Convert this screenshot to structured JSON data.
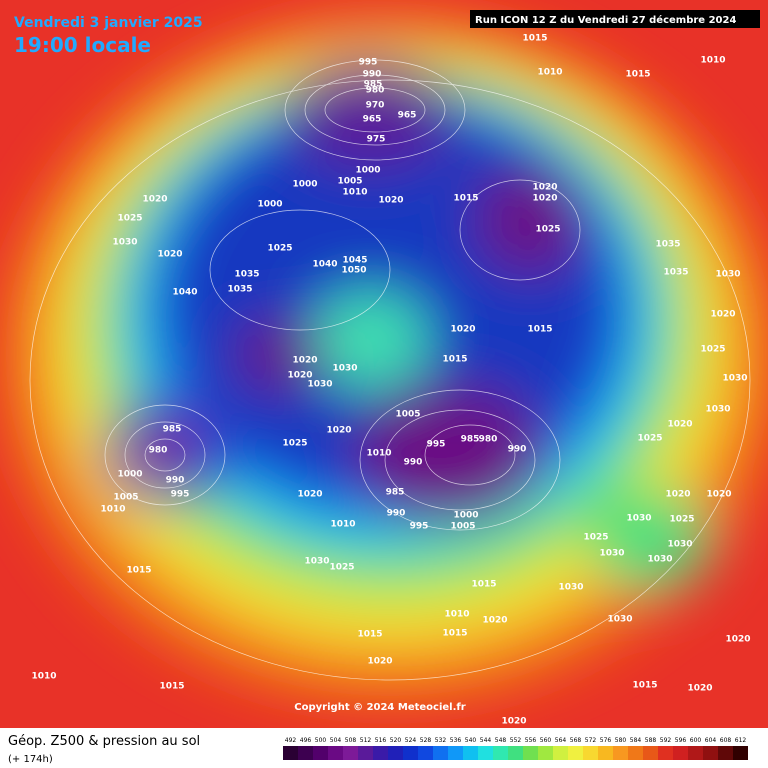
{
  "header": {
    "date": "Vendredi 3 janvier 2025",
    "time": "19:00 locale",
    "run": "Run ICON 12 Z du Vendredi 27 décembre 2024"
  },
  "copyright": "Copyright © 2024 Meteociel.fr",
  "footer": {
    "title": "Géop. Z500 & pression au sol",
    "lead": "(+ 174h)"
  },
  "legend": {
    "values": [
      "492",
      "496",
      "500",
      "504",
      "508",
      "512",
      "516",
      "520",
      "524",
      "528",
      "532",
      "536",
      "540",
      "544",
      "548",
      "552",
      "556",
      "560",
      "564",
      "568",
      "572",
      "576",
      "580",
      "584",
      "588",
      "592",
      "596",
      "600",
      "604",
      "608",
      "612"
    ],
    "colors": [
      "#2a0033",
      "#3d0050",
      "#52006b",
      "#6a0a84",
      "#7d1a98",
      "#5a1a9a",
      "#3a1aa8",
      "#2020b8",
      "#1030cc",
      "#1048e0",
      "#1070f0",
      "#1098f8",
      "#10c0f0",
      "#20e0e0",
      "#30e8b0",
      "#40e080",
      "#70e050",
      "#a0e840",
      "#d0f040",
      "#f0f040",
      "#f8d830",
      "#f8b820",
      "#f89820",
      "#f07818",
      "#e85818",
      "#e03020",
      "#d02020",
      "#b01818",
      "#901010",
      "#600808",
      "#300000"
    ]
  },
  "pressure_labels": [
    "1015",
    "1010",
    "1015",
    "1010",
    "995",
    "990",
    "985",
    "980",
    "970",
    "965",
    "965",
    "975",
    "1000",
    "1005",
    "1010",
    "1000",
    "1000",
    "1020",
    "1015",
    "1020",
    "1020",
    "1025",
    "1020",
    "1025",
    "1030",
    "1020",
    "1040",
    "1035",
    "1035",
    "1025",
    "1040",
    "1045",
    "1050",
    "1020",
    "1015",
    "1015",
    "1020",
    "1020",
    "1030",
    "1030",
    "985",
    "980",
    "990",
    "995",
    "1000",
    "1005",
    "1010",
    "1005",
    "995",
    "985",
    "980",
    "990",
    "990",
    "985",
    "990",
    "995",
    "1000",
    "1005",
    "1010",
    "1010",
    "1020",
    "1025",
    "1020",
    "1030",
    "1025",
    "1015",
    "1015",
    "1030",
    "1010",
    "1020",
    "1015",
    "1030",
    "1015",
    "1020",
    "1010",
    "1015",
    "1020",
    "1015",
    "1020",
    "1020",
    "1035",
    "1035",
    "1030",
    "1020",
    "1025",
    "1030",
    "1020",
    "1020",
    "1030",
    "1025",
    "1030",
    "1030",
    "1020",
    "1025",
    "1030",
    "1030",
    "1025"
  ]
}
